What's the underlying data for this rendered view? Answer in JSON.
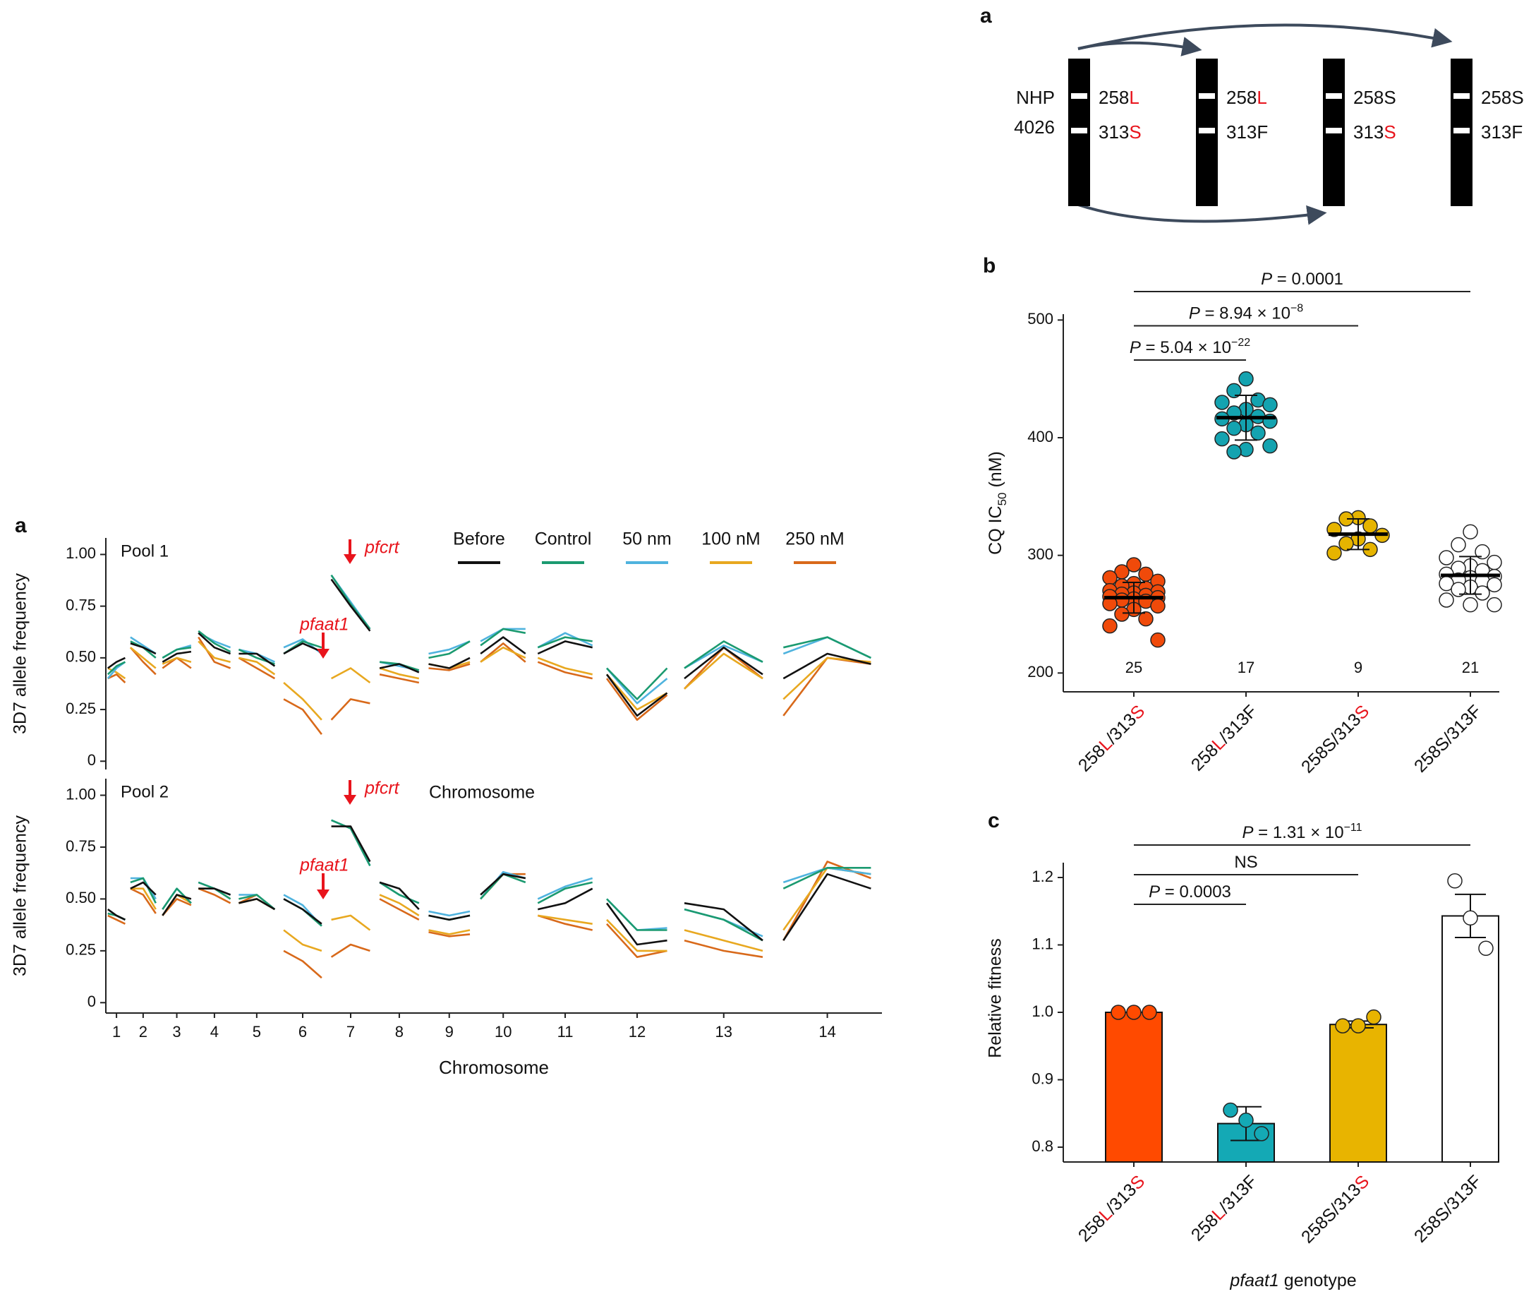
{
  "diagram": {
    "panel": "a",
    "strains": [
      "NHP",
      "4026"
    ],
    "lines": [
      [
        [
          "258",
          "L"
        ],
        [
          "313",
          "S"
        ]
      ],
      [
        [
          "258",
          "L"
        ],
        [
          "313F"
        ]
      ],
      [
        [
          "258S"
        ],
        [
          "313",
          "S"
        ]
      ],
      [
        [
          "258S"
        ],
        [
          "313F"
        ]
      ]
    ]
  },
  "chart_data": [
    {
      "type": "line",
      "panel": "a",
      "title": "Pool 1",
      "ylabel": "3D7 allele frequency",
      "annotations": [
        "pfaat1",
        "pfcrt"
      ],
      "x": [
        0.06,
        0.32,
        0.58,
        0.64,
        0.74,
        1.12,
        1.5,
        1.59,
        1.7,
        2.13,
        2.56,
        2.66,
        2.78,
        3.26,
        3.74,
        3.86,
        3.99,
        4.53,
        5.07,
        5.2,
        5.34,
        5.91,
        6.48,
        6.62,
        6.77,
        7.35,
        7.93,
        8.07,
        8.22,
        8.81,
        9.4,
        9.54,
        9.69,
        10.31,
        10.93,
        11.08,
        11.25,
        11.93,
        12.6,
        12.77,
        12.97,
        13.79,
        14.61,
        14.81,
        15.04,
        15.95,
        16.85,
        17.08,
        17.37,
        18.55,
        19.72,
        20.01,
        20.34,
        21.66,
        22.97
      ],
      "xlim": [
        0,
        23.3
      ],
      "ylim": [
        -0.04,
        1.08
      ],
      "yticks": [
        0,
        0.25,
        {
          "value": 0.5,
          "label": "0.50"
        },
        0.75,
        {
          "value": 1,
          "label": "1.00"
        }
      ],
      "series": [
        {
          "name": "Before",
          "color": "#111111",
          "values": [
            0.45,
            0.48,
            0.5,
            null,
            0.57,
            0.55,
            0.52,
            null,
            0.48,
            0.52,
            0.53,
            null,
            0.62,
            0.55,
            0.52,
            null,
            0.52,
            0.52,
            0.46,
            null,
            0.52,
            0.57,
            0.53,
            null,
            0.88,
            0.75,
            0.63,
            null,
            0.45,
            0.47,
            0.43,
            null,
            0.47,
            0.45,
            0.5,
            null,
            0.52,
            0.6,
            0.52,
            null,
            0.52,
            0.58,
            0.55,
            null,
            0.42,
            0.22,
            0.33,
            null,
            0.4,
            0.55,
            0.42,
            null,
            0.4,
            0.52,
            0.47
          ]
        },
        {
          "name": "Control",
          "color": "#1b9a70",
          "values": [
            0.42,
            0.46,
            0.48,
            null,
            0.58,
            0.55,
            0.5,
            null,
            0.5,
            0.54,
            0.55,
            null,
            0.63,
            0.57,
            0.53,
            null,
            0.54,
            0.5,
            0.47,
            null,
            0.52,
            0.58,
            0.55,
            null,
            0.9,
            0.76,
            0.64,
            null,
            0.48,
            0.47,
            0.44,
            null,
            0.5,
            0.52,
            0.58,
            null,
            0.56,
            0.64,
            0.62,
            null,
            0.55,
            0.6,
            0.58,
            null,
            0.45,
            0.3,
            0.45,
            null,
            0.45,
            0.58,
            0.48,
            null,
            0.55,
            0.6,
            0.5
          ]
        },
        {
          "name": "50 nm",
          "color": "#4fb3de",
          "values": [
            0.4,
            0.45,
            0.48,
            null,
            0.6,
            0.56,
            0.52,
            null,
            0.5,
            0.54,
            0.56,
            null,
            0.62,
            0.58,
            0.55,
            null,
            0.54,
            0.52,
            0.48,
            null,
            0.55,
            0.59,
            0.52,
            null,
            0.9,
            0.77,
            0.64,
            null,
            0.48,
            0.46,
            0.44,
            null,
            0.52,
            0.54,
            0.58,
            null,
            0.58,
            0.64,
            0.64,
            null,
            0.55,
            0.62,
            0.56,
            null,
            0.45,
            0.28,
            0.4,
            null,
            0.45,
            0.56,
            0.48,
            null,
            0.52,
            0.6,
            0.5
          ]
        },
        {
          "name": "100 nM",
          "color": "#e8a820",
          "values": [
            0.45,
            0.43,
            0.4,
            null,
            0.55,
            0.5,
            0.45,
            null,
            0.47,
            0.5,
            0.48,
            null,
            0.58,
            0.5,
            0.48,
            null,
            0.5,
            0.48,
            0.42,
            null,
            0.38,
            0.3,
            0.2,
            null,
            0.4,
            0.45,
            0.38,
            null,
            0.45,
            0.42,
            0.4,
            null,
            0.47,
            0.45,
            0.48,
            null,
            0.48,
            0.55,
            0.5,
            null,
            0.5,
            0.45,
            0.42,
            null,
            0.42,
            0.25,
            0.33,
            null,
            0.35,
            0.52,
            0.4,
            null,
            0.3,
            0.5,
            0.48
          ]
        },
        {
          "name": "250 nM",
          "color": "#d8691a",
          "values": [
            0.4,
            0.42,
            0.38,
            null,
            0.55,
            0.48,
            0.42,
            null,
            0.45,
            0.5,
            0.45,
            null,
            0.6,
            0.48,
            0.45,
            null,
            0.5,
            0.45,
            0.4,
            null,
            0.3,
            0.25,
            0.13,
            null,
            0.2,
            0.3,
            0.28,
            null,
            0.42,
            0.4,
            0.38,
            null,
            0.45,
            0.44,
            0.47,
            null,
            0.48,
            0.57,
            0.48,
            null,
            0.48,
            0.43,
            0.4,
            null,
            0.4,
            0.2,
            0.32,
            null,
            0.35,
            0.55,
            0.4,
            null,
            0.22,
            0.5,
            0.47
          ]
        }
      ]
    },
    {
      "type": "line",
      "title": "Pool 2",
      "ylabel": "3D7 allele frequency",
      "xlabel": "Chromosome",
      "annotations": [
        "pfaat1",
        "pfcrt",
        "Chromosome"
      ],
      "x": [
        0.06,
        0.32,
        0.58,
        0.64,
        0.74,
        1.12,
        1.5,
        1.59,
        1.7,
        2.13,
        2.56,
        2.66,
        2.78,
        3.26,
        3.74,
        3.86,
        3.99,
        4.53,
        5.07,
        5.2,
        5.34,
        5.91,
        6.48,
        6.62,
        6.77,
        7.35,
        7.93,
        8.07,
        8.22,
        8.81,
        9.4,
        9.54,
        9.69,
        10.31,
        10.93,
        11.08,
        11.25,
        11.93,
        12.6,
        12.77,
        12.97,
        13.79,
        14.61,
        14.81,
        15.04,
        15.95,
        16.85,
        17.08,
        17.37,
        18.55,
        19.72,
        20.01,
        20.34,
        21.66,
        22.97
      ],
      "xlim": [
        0,
        23.3
      ],
      "ylim": [
        -0.05,
        1.08
      ],
      "xticks": [
        {
          "value": 0.32,
          "label": "1"
        },
        {
          "value": 1.12,
          "label": "2"
        },
        {
          "value": 2.13,
          "label": "3"
        },
        {
          "value": 3.26,
          "label": "4"
        },
        {
          "value": 4.53,
          "label": "5"
        },
        {
          "value": 5.91,
          "label": "6"
        },
        {
          "value": 7.35,
          "label": "7"
        },
        {
          "value": 8.81,
          "label": "8"
        },
        {
          "value": 10.31,
          "label": "9"
        },
        {
          "value": 11.93,
          "label": "10"
        },
        {
          "value": 13.79,
          "label": "11"
        },
        {
          "value": 15.95,
          "label": "12"
        },
        {
          "value": 18.55,
          "label": "13"
        },
        {
          "value": 21.66,
          "label": "14"
        }
      ],
      "yticks": [
        0,
        0.25,
        {
          "value": 0.5,
          "label": "0.50"
        },
        0.75,
        {
          "value": 1,
          "label": "1.00"
        }
      ],
      "series": [
        {
          "color": "#111111",
          "values": [
            0.45,
            0.42,
            0.4,
            null,
            0.55,
            0.58,
            0.52,
            null,
            0.42,
            0.52,
            0.5,
            null,
            0.55,
            0.55,
            0.52,
            null,
            0.48,
            0.5,
            0.45,
            null,
            0.5,
            0.45,
            0.38,
            null,
            0.85,
            0.85,
            0.68,
            null,
            0.58,
            0.55,
            0.45,
            null,
            0.42,
            0.4,
            0.42,
            null,
            0.52,
            0.62,
            0.6,
            null,
            0.45,
            0.48,
            0.55,
            null,
            0.48,
            0.28,
            0.3,
            null,
            0.48,
            0.45,
            0.3,
            null,
            0.3,
            0.62,
            0.55
          ]
        },
        {
          "color": "#1b9a70",
          "values": [
            0.43,
            0.42,
            0.4,
            null,
            0.58,
            0.6,
            0.48,
            null,
            0.45,
            0.55,
            0.48,
            null,
            0.58,
            0.55,
            0.5,
            null,
            0.5,
            0.52,
            0.45,
            null,
            0.5,
            0.45,
            0.37,
            null,
            0.88,
            0.84,
            0.66,
            null,
            0.58,
            0.52,
            0.48,
            null,
            0.42,
            0.4,
            0.42,
            null,
            0.5,
            0.62,
            0.58,
            null,
            0.48,
            0.55,
            0.58,
            null,
            0.5,
            0.35,
            0.35,
            null,
            0.45,
            0.4,
            0.3,
            null,
            0.55,
            0.65,
            0.65
          ]
        },
        {
          "color": "#4fb3de",
          "values": [
            0.43,
            0.42,
            0.4,
            null,
            0.6,
            0.6,
            0.5,
            null,
            0.45,
            0.55,
            0.48,
            null,
            0.58,
            0.55,
            0.52,
            null,
            0.52,
            0.52,
            0.45,
            null,
            0.52,
            0.47,
            0.37,
            null,
            0.88,
            0.84,
            0.66,
            null,
            0.58,
            0.52,
            0.48,
            null,
            0.44,
            0.42,
            0.44,
            null,
            0.5,
            0.63,
            0.6,
            null,
            0.5,
            0.56,
            0.6,
            null,
            0.5,
            0.35,
            0.36,
            null,
            0.45,
            0.4,
            0.32,
            null,
            0.58,
            0.65,
            0.62
          ]
        },
        {
          "color": "#e8a820",
          "values": [
            0.43,
            0.42,
            0.4,
            null,
            0.55,
            0.55,
            0.45,
            null,
            0.42,
            0.52,
            0.48,
            null,
            0.55,
            0.55,
            0.5,
            null,
            0.48,
            0.5,
            0.45,
            null,
            0.35,
            0.28,
            0.25,
            null,
            0.4,
            0.42,
            0.35,
            null,
            0.52,
            0.48,
            0.42,
            null,
            0.35,
            0.33,
            0.35,
            null,
            0.5,
            0.62,
            0.6,
            null,
            0.42,
            0.4,
            0.38,
            null,
            0.4,
            0.25,
            0.25,
            null,
            0.35,
            0.3,
            0.25,
            null,
            0.35,
            0.65,
            0.62
          ]
        },
        {
          "color": "#d8691a",
          "values": [
            0.42,
            0.4,
            0.38,
            null,
            0.55,
            0.52,
            0.43,
            null,
            0.42,
            0.5,
            0.47,
            null,
            0.55,
            0.52,
            0.48,
            null,
            0.48,
            0.52,
            0.45,
            null,
            0.25,
            0.2,
            0.12,
            null,
            0.22,
            0.28,
            0.25,
            null,
            0.5,
            0.45,
            0.4,
            null,
            0.34,
            0.32,
            0.33,
            null,
            0.5,
            0.62,
            0.62,
            null,
            0.42,
            0.38,
            0.35,
            null,
            0.38,
            0.22,
            0.25,
            null,
            0.3,
            0.25,
            0.22,
            null,
            0.3,
            0.68,
            0.6
          ]
        }
      ]
    },
    {
      "type": "strip",
      "panel": "b",
      "ylabel": [
        "CQ IC",
        "50",
        " (nM)"
      ],
      "categories": [
        [
          "258",
          "L",
          "/313",
          "S"
        ],
        [
          "258",
          "L",
          "/313F"
        ],
        [
          "258S/313",
          "S"
        ],
        [
          "258S/313F"
        ]
      ],
      "ylim": [
        184,
        505
      ],
      "yticks": [
        200,
        300,
        400,
        500
      ],
      "comparisons": [
        [
          "P",
          " = 5.04 × 10",
          "−22"
        ],
        [
          "P",
          " = 8.94 × 10",
          "−8"
        ],
        [
          "P",
          " = 0.0001"
        ]
      ],
      "series": [
        {
          "color": "#f04a0a",
          "n": 25,
          "mean": 264,
          "sd": 13,
          "values": [
            292,
            286,
            284,
            281,
            278,
            276,
            274,
            272,
            270,
            269,
            268,
            267,
            266,
            265,
            264,
            263,
            262,
            261,
            259,
            257,
            254,
            250,
            246,
            240,
            228
          ]
        },
        {
          "color": "#14a3b0",
          "n": 17,
          "mean": 417,
          "sd": 19,
          "values": [
            450,
            440,
            432,
            430,
            428,
            424,
            421,
            418,
            416,
            414,
            411,
            408,
            404,
            399,
            393,
            390,
            388
          ]
        },
        {
          "color": "#e6b400",
          "n": 9,
          "mean": 318,
          "sd": 13,
          "values": [
            332,
            331,
            325,
            322,
            317,
            314,
            310,
            305,
            302
          ]
        },
        {
          "color": "#ffffff",
          "n": 21,
          "mean": 283,
          "sd": 16,
          "values": [
            320,
            309,
            303,
            298,
            294,
            291,
            289,
            287,
            284,
            282,
            281,
            279,
            278,
            276,
            275,
            273,
            271,
            268,
            262,
            258,
            258
          ]
        }
      ]
    },
    {
      "type": "bar",
      "panel": "c",
      "ylabel": "Relative fitness",
      "xlabel": [
        "pfaat1",
        " genotype"
      ],
      "categories": [
        [
          "258",
          "L",
          "/313",
          "S"
        ],
        [
          "258",
          "L",
          "/313F"
        ],
        [
          "258S/313",
          "S"
        ],
        [
          "258S/313F"
        ]
      ],
      "ylim": [
        0.778,
        1.222
      ],
      "yticks": [
        0.8,
        0.9,
        {
          "value": 1,
          "label": "1.0"
        },
        1.1,
        1.2
      ],
      "comparisons": [
        [
          "P",
          " = 0.0003"
        ],
        [
          "NS"
        ],
        [
          "P",
          " = 1.31 × 10",
          "−11"
        ]
      ],
      "values": [
        1,
        0.835,
        0.982,
        1.143
      ],
      "errors": [
        0,
        0.025,
        0.005,
        0.032
      ],
      "colors": [
        "#ff4a00",
        "#14a9b5",
        "#e8b400",
        "#ffffff"
      ],
      "points": [
        [
          1,
          1,
          1
        ],
        [
          0.855,
          0.84,
          0.82
        ],
        [
          0.98,
          0.98,
          0.993
        ],
        [
          1.195,
          1.14,
          1.095
        ]
      ]
    }
  ]
}
